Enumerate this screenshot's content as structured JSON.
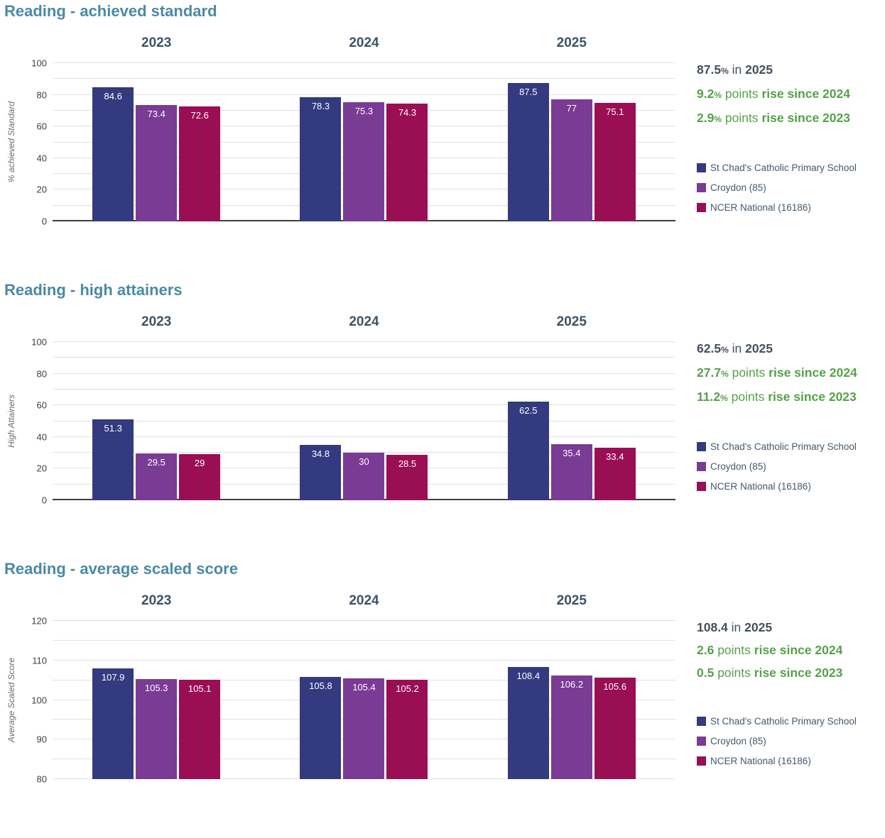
{
  "colors": {
    "heading": "#4a8aa6",
    "year_header": "#3d5366",
    "summary_dark": "#454f5e",
    "summary_green": "#55a149",
    "school": "#333a80",
    "lea": "#7a3b94",
    "national": "#9a0e54"
  },
  "chart_data": [
    {
      "type": "bar",
      "title": "Reading - achieved standard",
      "ylabel": "% achieved Standard",
      "ylim": [
        0,
        100
      ],
      "grid_step": 10,
      "tick_step": 20,
      "grid": true,
      "legend_position": "right",
      "categories": [
        "2023",
        "2024",
        "2025"
      ],
      "series": [
        {
          "name": "St Chad's Catholic Primary School",
          "color": "#333a80",
          "values": [
            84.6,
            78.3,
            87.5
          ]
        },
        {
          "name": "Croydon (85)",
          "color": "#7a3b94",
          "values": [
            73.4,
            75.3,
            77
          ]
        },
        {
          "name": "NCER National (16186)",
          "color": "#9a0e54",
          "values": [
            72.6,
            74.3,
            75.1
          ]
        }
      ],
      "summary": {
        "headline": {
          "value": "87.5",
          "unit": "%",
          "connector": "in",
          "tail": "2025"
        },
        "changes": [
          {
            "value": "9.2",
            "unit": "%",
            "connector": "points",
            "tail": "rise since 2024"
          },
          {
            "value": "2.9",
            "unit": "%",
            "connector": "points",
            "tail": "rise since 2023"
          }
        ]
      }
    },
    {
      "type": "bar",
      "title": "Reading - high attainers",
      "ylabel": "High Attainers",
      "ylim": [
        0,
        100
      ],
      "grid_step": 10,
      "tick_step": 20,
      "grid": true,
      "legend_position": "right",
      "categories": [
        "2023",
        "2024",
        "2025"
      ],
      "series": [
        {
          "name": "St Chad's Catholic Primary School",
          "color": "#333a80",
          "values": [
            51.3,
            34.8,
            62.5
          ]
        },
        {
          "name": "Croydon (85)",
          "color": "#7a3b94",
          "values": [
            29.5,
            30,
            35.4
          ]
        },
        {
          "name": "NCER National (16186)",
          "color": "#9a0e54",
          "values": [
            29,
            28.5,
            33.4
          ]
        }
      ],
      "summary": {
        "headline": {
          "value": "62.5",
          "unit": "%",
          "connector": "in",
          "tail": "2025"
        },
        "changes": [
          {
            "value": "27.7",
            "unit": "%",
            "connector": "points",
            "tail": "rise since 2024"
          },
          {
            "value": "11.2",
            "unit": "%",
            "connector": "points",
            "tail": "rise since 2023"
          }
        ]
      }
    },
    {
      "type": "bar",
      "title": "Reading - average scaled score",
      "ylabel": "Average Scaled Score",
      "ylim": [
        80,
        120
      ],
      "grid_step": 5,
      "tick_step": 10,
      "grid": true,
      "legend_position": "right",
      "categories": [
        "2023",
        "2024",
        "2025"
      ],
      "series": [
        {
          "name": "St Chad's Catholic Primary School",
          "color": "#333a80",
          "values": [
            107.9,
            105.8,
            108.4
          ]
        },
        {
          "name": "Croydon (85)",
          "color": "#7a3b94",
          "values": [
            105.3,
            105.4,
            106.2
          ]
        },
        {
          "name": "NCER National (16186)",
          "color": "#9a0e54",
          "values": [
            105.1,
            105.2,
            105.6
          ]
        }
      ],
      "summary": {
        "headline": {
          "value": "108.4",
          "unit": "",
          "connector": "in",
          "tail": "2025"
        },
        "changes": [
          {
            "value": "2.6",
            "unit": "",
            "connector": "points",
            "tail": "rise since 2024"
          },
          {
            "value": "0.5",
            "unit": "",
            "connector": "points",
            "tail": "rise since 2023"
          }
        ]
      }
    }
  ]
}
